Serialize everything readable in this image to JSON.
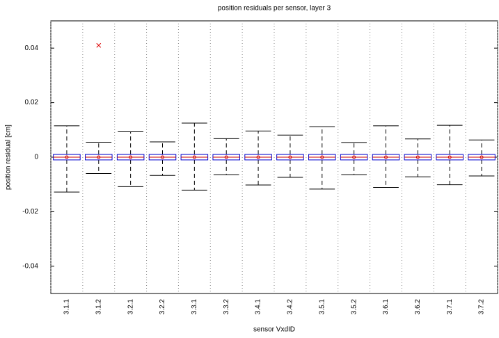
{
  "chart_data": {
    "type": "boxplot",
    "title": "position residuals per sensor, layer 3",
    "x_label": "sensor VxdID",
    "y_label": "position residual [cm]",
    "categories": [
      "3.1.1",
      "3.1.2",
      "3.2.1",
      "3.2.2",
      "3.3.1",
      "3.3.2",
      "3.4.1",
      "3.4.2",
      "3.5.1",
      "3.5.2",
      "3.6.1",
      "3.6.2",
      "3.7.1",
      "3.7.2"
    ],
    "boxes": [
      {
        "min": -0.0128,
        "q1": -0.001,
        "median": 0,
        "q3": 0.001,
        "max": 0.0115,
        "mean": 0
      },
      {
        "min": -0.006,
        "q1": -0.001,
        "median": 0,
        "q3": 0.001,
        "max": 0.0055,
        "mean": 0
      },
      {
        "min": -0.0108,
        "q1": -0.001,
        "median": 0,
        "q3": 0.001,
        "max": 0.0093,
        "mean": 0
      },
      {
        "min": -0.0067,
        "q1": -0.001,
        "median": 0,
        "q3": 0.001,
        "max": 0.0056,
        "mean": 0
      },
      {
        "min": -0.0121,
        "q1": -0.001,
        "median": 0,
        "q3": 0.001,
        "max": 0.0125,
        "mean": 0
      },
      {
        "min": -0.0064,
        "q1": -0.001,
        "median": 0,
        "q3": 0.001,
        "max": 0.0068,
        "mean": 0
      },
      {
        "min": -0.0102,
        "q1": -0.001,
        "median": 0,
        "q3": 0.001,
        "max": 0.0096,
        "mean": 0
      },
      {
        "min": -0.0074,
        "q1": -0.001,
        "median": 0,
        "q3": 0.001,
        "max": 0.0081,
        "mean": 0
      },
      {
        "min": -0.0117,
        "q1": -0.001,
        "median": 0,
        "q3": 0.001,
        "max": 0.0112,
        "mean": 0
      },
      {
        "min": -0.0064,
        "q1": -0.001,
        "median": 0,
        "q3": 0.001,
        "max": 0.0054,
        "mean": 0
      },
      {
        "min": -0.0111,
        "q1": -0.001,
        "median": 0,
        "q3": 0.001,
        "max": 0.0115,
        "mean": 0
      },
      {
        "min": -0.0072,
        "q1": -0.001,
        "median": 0,
        "q3": 0.001,
        "max": 0.0067,
        "mean": 0
      },
      {
        "min": -0.0101,
        "q1": -0.001,
        "median": 0,
        "q3": 0.001,
        "max": 0.0117,
        "mean": 0
      },
      {
        "min": -0.0069,
        "q1": -0.001,
        "median": 0,
        "q3": 0.001,
        "max": 0.0063,
        "mean": 0
      }
    ],
    "outliers": [
      [],
      [
        0.041
      ],
      [],
      [],
      [],
      [],
      [],
      [],
      [],
      [],
      [],
      [],
      [],
      []
    ],
    "box_color": "#0000cc",
    "median_color": "#cc0000",
    "mean_color": "#cc0000",
    "outlier_color": "#dd0000",
    "ylim": [
      -0.05,
      0.05
    ],
    "yticks": [
      -0.04,
      -0.02,
      0,
      0.02,
      0.04
    ],
    "grid": true
  }
}
